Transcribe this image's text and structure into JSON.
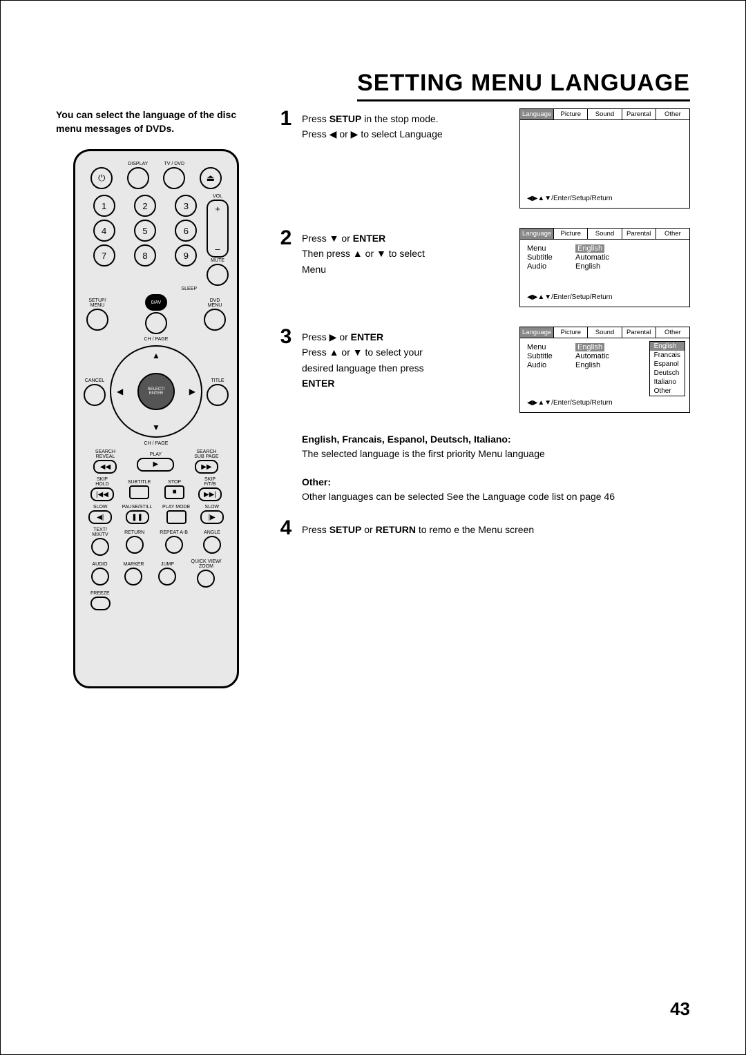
{
  "title": "SETTING MENU LANGUAGE",
  "intro": "You can select the language of the disc menu messages of DVDs.",
  "remote": {
    "labels": {
      "display": "DISPLAY",
      "tvdvd": "TV / DVD",
      "vol": "VOL",
      "mute": "MUTE",
      "sleep": "SLEEP",
      "setupmenu": "SETUP/\nMENU",
      "zeroav": "0/AV",
      "dvdmenu": "DVD\nMENU",
      "chpage_top": "CH / PAGE",
      "chpage_bot": "CH / PAGE",
      "cancel": "CANCEL",
      "title": "TITLE",
      "select_enter": "SELECT/\nENTER",
      "search_reveal": "SEARCH\nREVEAL",
      "play": "PLAY",
      "search_subpage": "SEARCH\nSUB PAGE",
      "skip_hold": "SKIP\nHOLD",
      "subtitle": "SUBTITLE",
      "stop": "STOP",
      "skip_ftb": "SKIP\nF/T/B",
      "slow_l": "SLOW",
      "pause_still": "PAUSE/STILL",
      "playmode": "PLAY MODE",
      "slow_r": "SLOW",
      "text_mixtv": "TEXT/\nMIX/TV",
      "return": "RETURN",
      "repeat": "REPEAT A-B",
      "angle": "ANGLE",
      "audio": "AUDIO",
      "marker": "MARKER",
      "jump": "JUMP",
      "quickview": "QUICK VIEW/\nZOOM",
      "freeze": "FREEZE"
    }
  },
  "steps": [
    {
      "num": "1",
      "parts": [
        "Press ",
        "SETUP",
        " in the stop mode.\nPress ◀ or ▶ to select Lan­guage"
      ]
    },
    {
      "num": "2",
      "parts": [
        "Press ▼ or ",
        "ENTER",
        "\nThen press ▲ or ▼ to select Menu"
      ]
    },
    {
      "num": "3",
      "parts": [
        "Press ▶ or ",
        "ENTER",
        "\nPress ▲ or ▼ to select your desired language  then press ",
        "ENTER"
      ]
    },
    {
      "num": "4",
      "parts": [
        "Press ",
        "SETUP",
        " or ",
        "RETURN",
        " to remo e the Menu screen"
      ]
    }
  ],
  "osd": {
    "tabs": [
      "Language",
      "Picture",
      "Sound",
      "Parental",
      "Other"
    ],
    "footer": "◀▶▲▼/Enter/Setup/Return",
    "box2": {
      "rows": [
        {
          "label": "Menu",
          "value": "English",
          "selected": true
        },
        {
          "label": "Subtitle",
          "value": "Automatic"
        },
        {
          "label": "Audio",
          "value": "English"
        }
      ]
    },
    "box3": {
      "rows": [
        {
          "label": "Menu",
          "value": "English",
          "selected": true
        },
        {
          "label": "Subtitle",
          "value": "Automatic"
        },
        {
          "label": "Audio",
          "value": "English"
        }
      ],
      "options": [
        "English",
        "Francais",
        "Espanol",
        "Deutsch",
        "Italiano",
        "Other"
      ],
      "option_selected": 0
    }
  },
  "notes": {
    "langs_heading": "English, Francais, Espanol, Deutsch, Italiano:",
    "langs_text": "The selected language is the first priority Menu language",
    "other_heading": "Other:",
    "other_text": "Other languages can be selected  See the Language code list on page 46"
  },
  "page_number": "43"
}
